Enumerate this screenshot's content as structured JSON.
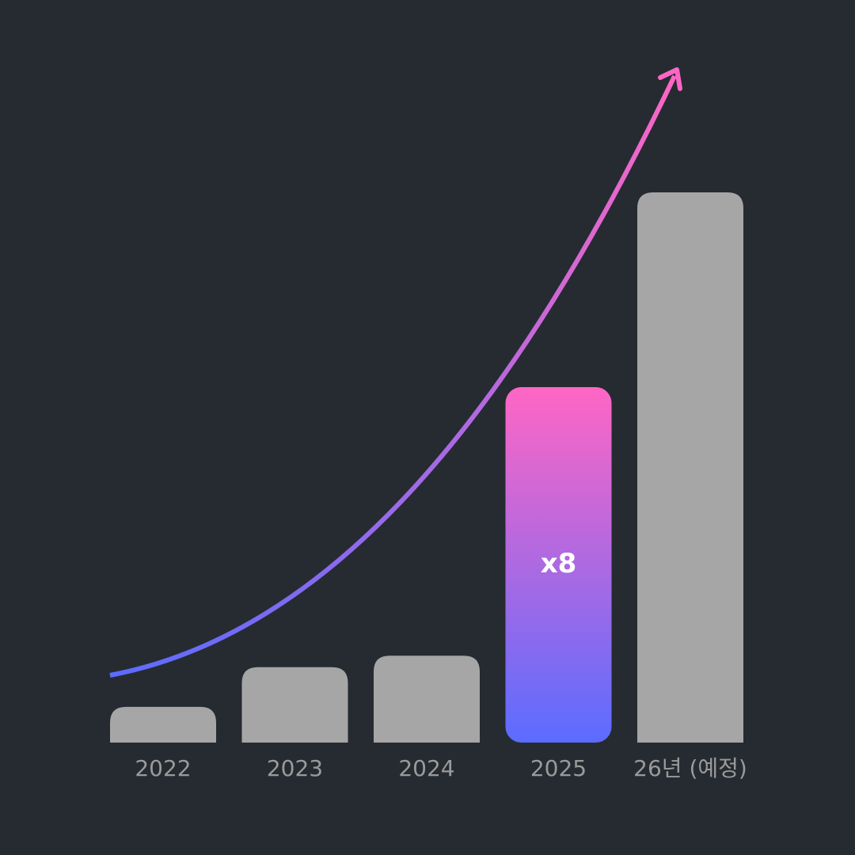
{
  "chart_data": {
    "type": "bar",
    "categories": [
      "2022",
      "2023",
      "2024",
      "2025",
      "26년 (예정)"
    ],
    "values": [
      6.5,
      13.7,
      15.8,
      64.6,
      100
    ],
    "color": "#a6a6a6",
    "highlight": "2025",
    "highlight_colors": [
      "#ff66c4",
      "#5b6cff"
    ],
    "annotation": "x8",
    "trend_colors": [
      "#5b6cff",
      "#ff66c4"
    ]
  }
}
